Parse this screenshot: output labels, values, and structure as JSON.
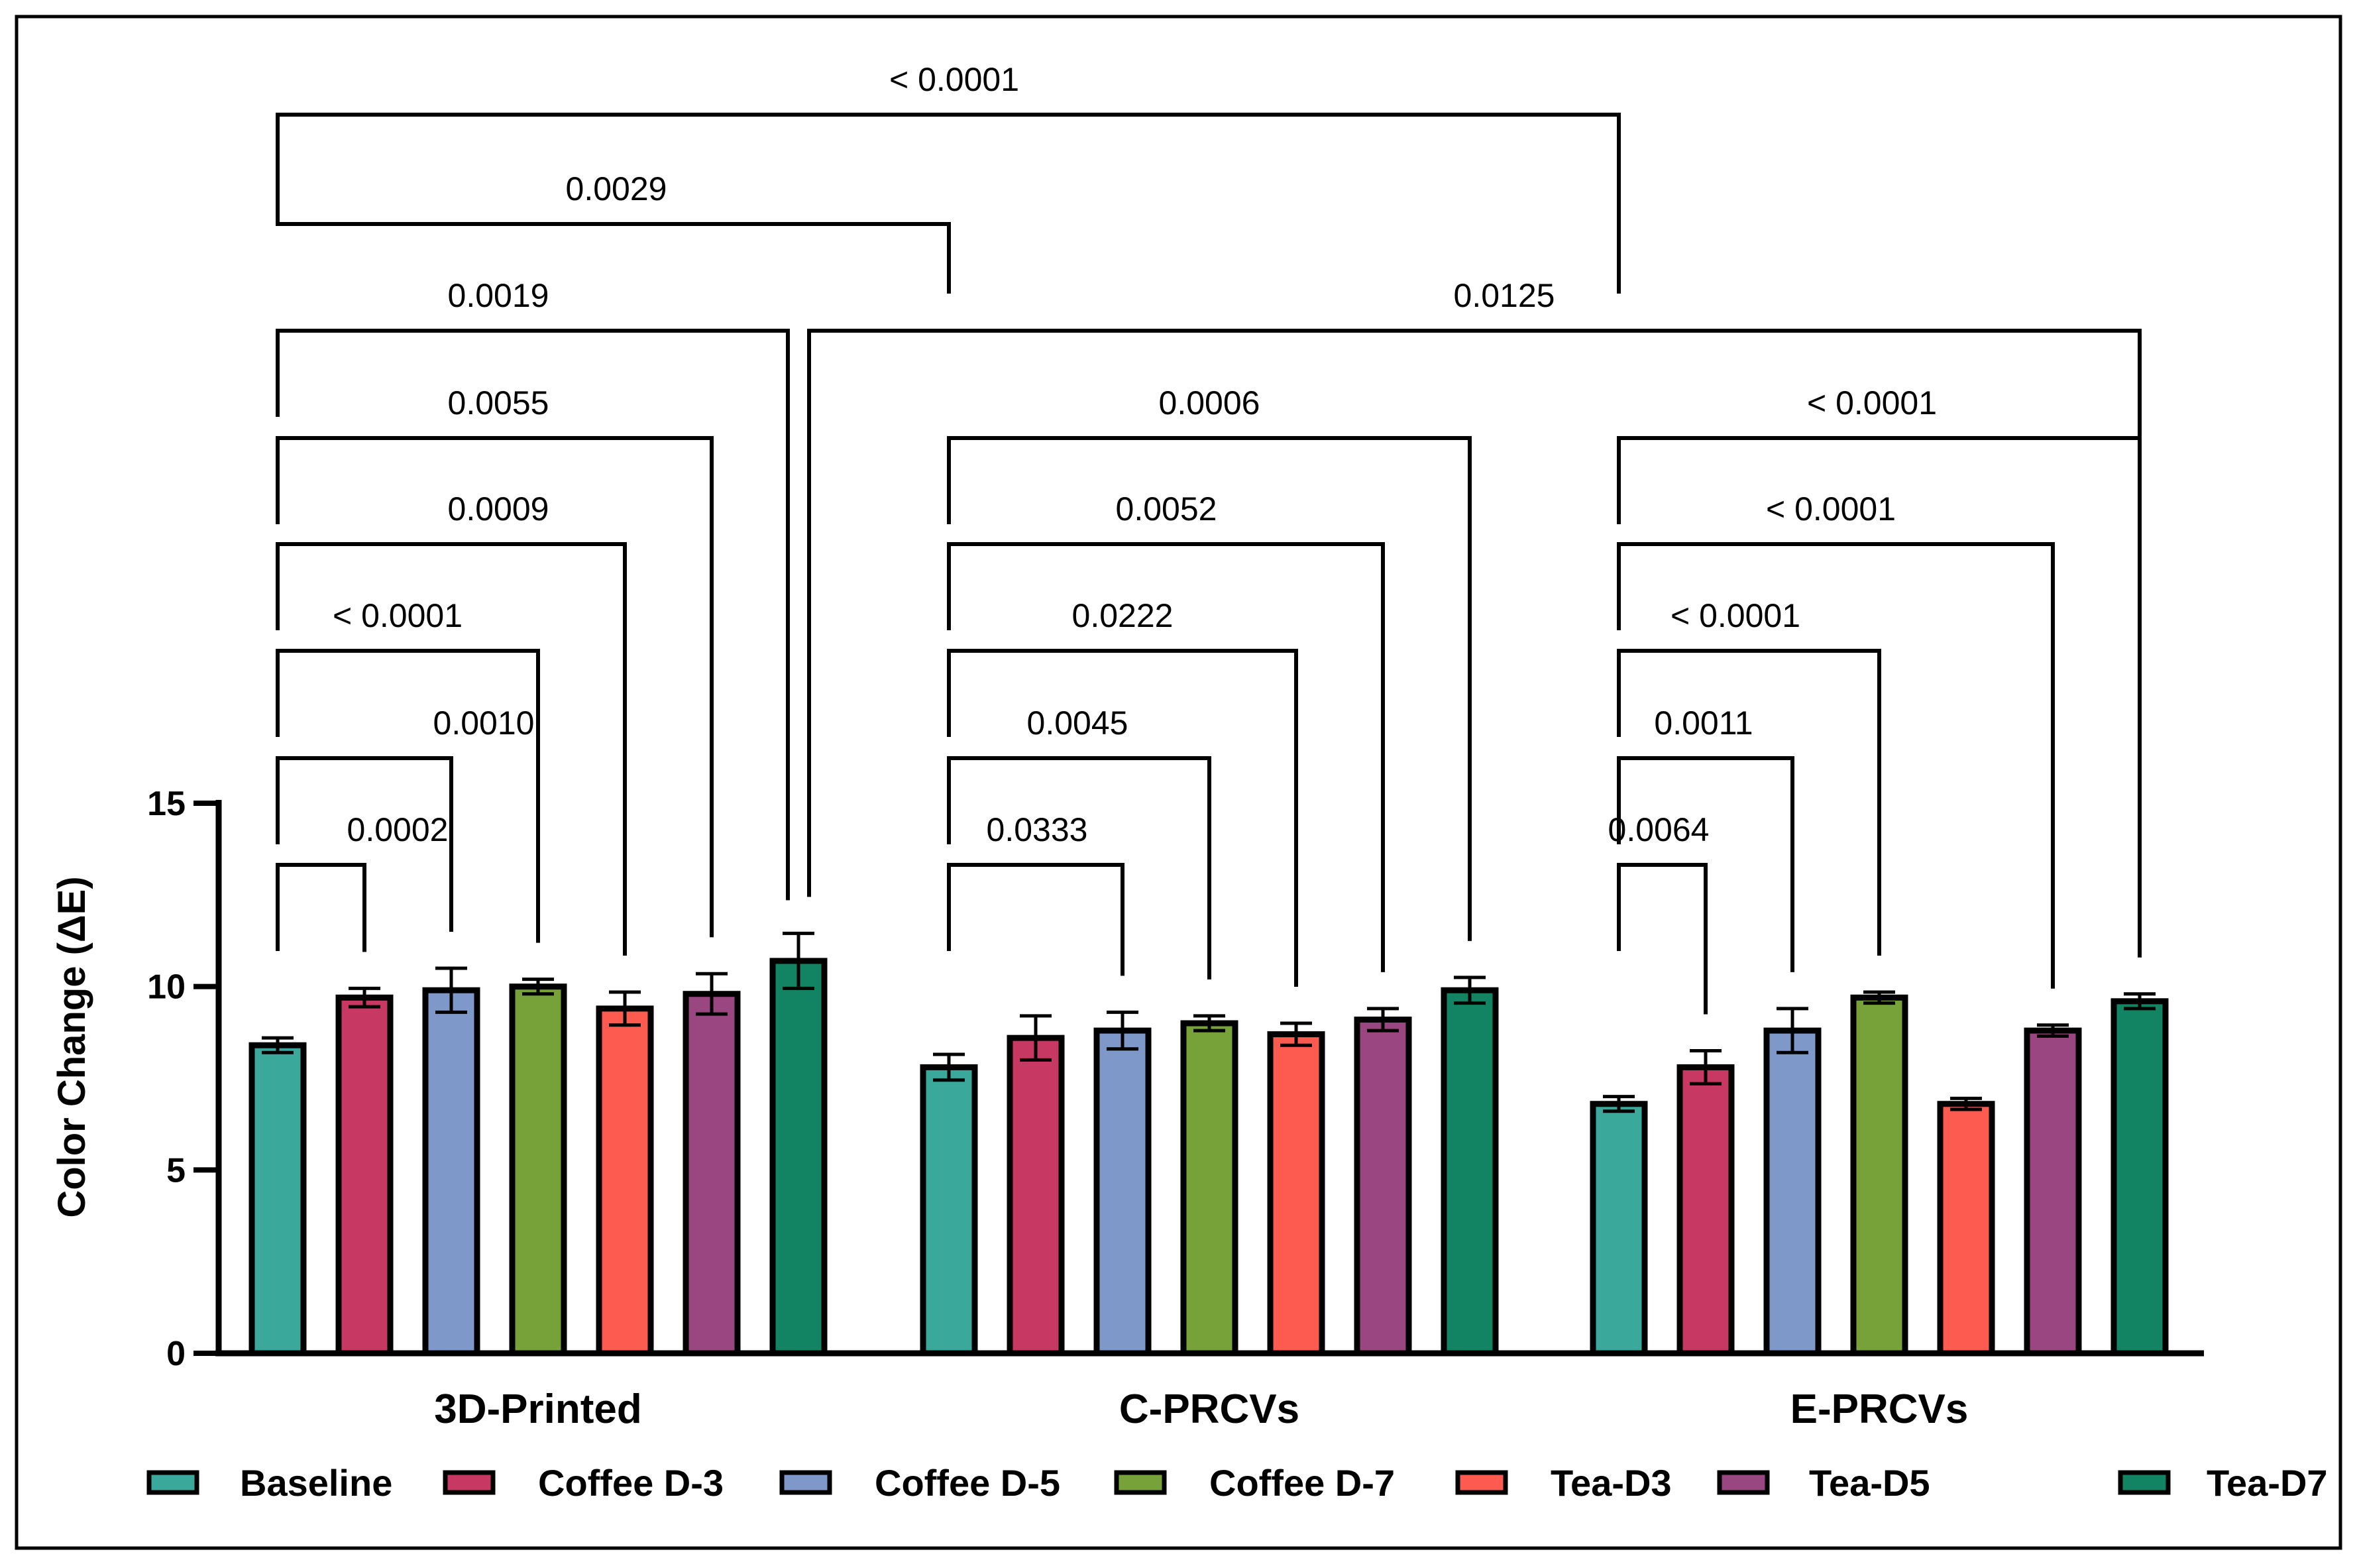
{
  "chart_data": {
    "type": "bar",
    "ylabel": "Color Change (ΔE)",
    "xlabel": "",
    "ylim": [
      0,
      15
    ],
    "yticks": [
      "0",
      "5",
      "10",
      "15"
    ],
    "grid": false,
    "legend_position": "bottom",
    "categories": [
      "3D-Printed",
      "C-PRCVs",
      "E-PRCVs"
    ],
    "series": [
      {
        "name": "Baseline",
        "color": "#3AA89B",
        "values": [
          8.4,
          7.8,
          6.8
        ],
        "errors": [
          0.2,
          0.35,
          0.2
        ]
      },
      {
        "name": "Coffee D-3",
        "color": "#C73862",
        "values": [
          9.7,
          8.6,
          7.8
        ],
        "errors": [
          0.25,
          0.6,
          0.45
        ]
      },
      {
        "name": "Coffee D-5",
        "color": "#7E98C9",
        "values": [
          9.9,
          8.8,
          8.8
        ],
        "errors": [
          0.6,
          0.5,
          0.6
        ]
      },
      {
        "name": "Coffee D-7",
        "color": "#77A239",
        "values": [
          10.0,
          9.0,
          9.7
        ],
        "errors": [
          0.2,
          0.2,
          0.15
        ]
      },
      {
        "name": "Tea-D3",
        "color": "#FD5B50",
        "values": [
          9.4,
          8.7,
          6.8
        ],
        "errors": [
          0.45,
          0.3,
          0.15
        ]
      },
      {
        "name": "Tea-D5",
        "color": "#994681",
        "values": [
          9.8,
          9.1,
          8.8
        ],
        "errors": [
          0.55,
          0.3,
          0.15
        ]
      },
      {
        "name": "Tea-D7",
        "color": "#128463",
        "values": [
          10.7,
          9.9,
          9.6
        ],
        "errors": [
          0.75,
          0.35,
          0.2
        ]
      }
    ],
    "comparisons": [
      {
        "from": [
          0,
          0
        ],
        "to": [
          0,
          1
        ],
        "p": "0.0002"
      },
      {
        "from": [
          0,
          0
        ],
        "to": [
          0,
          2
        ],
        "p": "0.0010"
      },
      {
        "from": [
          0,
          0
        ],
        "to": [
          0,
          3
        ],
        "p": "< 0.0001"
      },
      {
        "from": [
          0,
          0
        ],
        "to": [
          0,
          4
        ],
        "p": "0.0009"
      },
      {
        "from": [
          0,
          0
        ],
        "to": [
          0,
          5
        ],
        "p": "0.0055"
      },
      {
        "from": [
          0,
          0
        ],
        "to": [
          0,
          6
        ],
        "p": "0.0019"
      },
      {
        "from": [
          0,
          0
        ],
        "to": [
          1,
          0
        ],
        "p": "0.0029"
      },
      {
        "from": [
          0,
          0
        ],
        "to": [
          2,
          0
        ],
        "p": "< 0.0001"
      },
      {
        "from": [
          0,
          6
        ],
        "to": [
          2,
          6
        ],
        "p": "0.0125"
      },
      {
        "from": [
          1,
          0
        ],
        "to": [
          1,
          2
        ],
        "p": "0.0333"
      },
      {
        "from": [
          1,
          0
        ],
        "to": [
          1,
          3
        ],
        "p": "0.0045"
      },
      {
        "from": [
          1,
          0
        ],
        "to": [
          1,
          4
        ],
        "p": "0.0222"
      },
      {
        "from": [
          1,
          0
        ],
        "to": [
          1,
          5
        ],
        "p": "0.0052"
      },
      {
        "from": [
          1,
          0
        ],
        "to": [
          1,
          6
        ],
        "p": "0.0006"
      },
      {
        "from": [
          2,
          0
        ],
        "to": [
          2,
          1
        ],
        "p": "0.0064"
      },
      {
        "from": [
          2,
          0
        ],
        "to": [
          2,
          2
        ],
        "p": "0.0011"
      },
      {
        "from": [
          2,
          0
        ],
        "to": [
          2,
          3
        ],
        "p": "< 0.0001"
      },
      {
        "from": [
          2,
          0
        ],
        "to": [
          2,
          5
        ],
        "p": "< 0.0001"
      },
      {
        "from": [
          2,
          0
        ],
        "to": [
          2,
          6
        ],
        "p": "< 0.0001"
      }
    ]
  }
}
